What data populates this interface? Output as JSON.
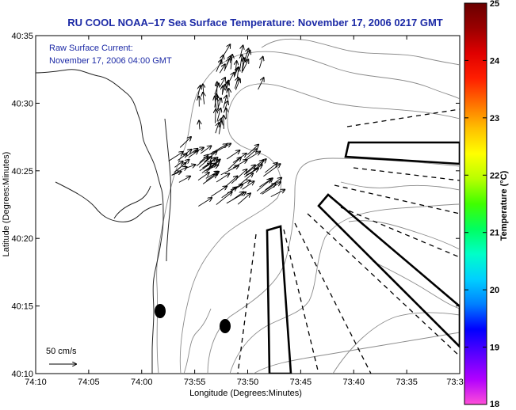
{
  "title": "RU COOL  NOAA–17  Sea Surface Temperature:  November 17, 2006 0217 GMT",
  "annotation": {
    "line1": "Raw Surface Current:",
    "line2": "November 17, 2006 04:00 GMT"
  },
  "axes": {
    "ylabel": "Latitude (Degrees:Minutes)",
    "xlabel": "Longitude (Degrees:Minutes)",
    "yticks": [
      "40:35",
      "40:30",
      "40:25",
      "40:20",
      "40:15",
      "40:10"
    ],
    "xticks": [
      "74:10",
      "74:05",
      "74:00",
      "73:55",
      "73:50",
      "73:45",
      "73:40",
      "73:35",
      "73:3"
    ]
  },
  "scale_vector": {
    "label": "50 cm/s"
  },
  "colorbar": {
    "label": "Temperature (°C)",
    "min": 18,
    "max": 25,
    "ticks": [
      "25",
      "24",
      "23",
      "22",
      "21",
      "20",
      "19",
      "18"
    ],
    "colors": [
      "#ff4fd8",
      "#b100ff",
      "#5a00ff",
      "#0000ff",
      "#0080ff",
      "#00d0ff",
      "#00ffc8",
      "#00ff60",
      "#40ff00",
      "#b8ff00",
      "#ffff00",
      "#ffc000",
      "#ff7000",
      "#ff1e00",
      "#e00000",
      "#9a0000",
      "#6a0000"
    ]
  }
}
